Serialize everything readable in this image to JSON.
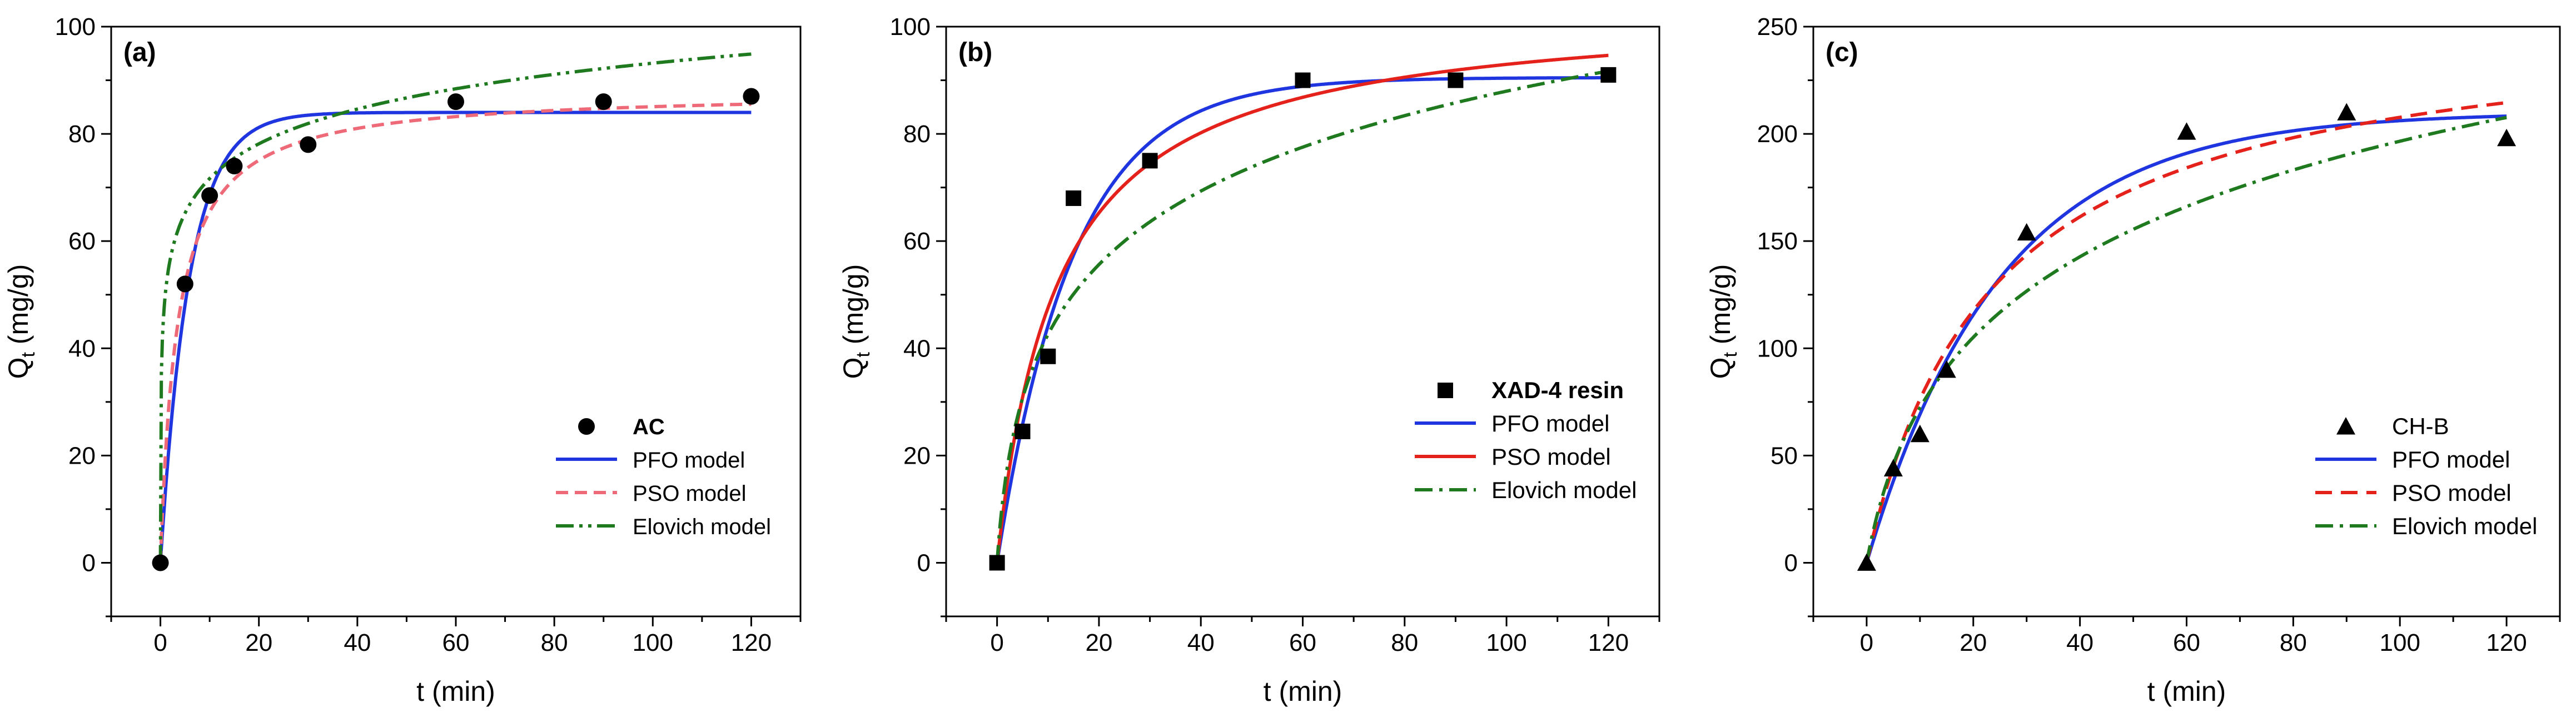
{
  "chart_data": [
    {
      "type": "line",
      "panel_label": "(a)",
      "xlabel": "t (min)",
      "ylabel_main": "Q",
      "ylabel_sub": "t",
      "ylabel_tail": " (mg/g)",
      "xlim": [
        -10,
        130
      ],
      "ylim": [
        -10,
        100
      ],
      "xticks": [
        0,
        20,
        40,
        60,
        80,
        100,
        120
      ],
      "yticks": [
        0,
        20,
        40,
        60,
        80,
        100
      ],
      "legend_position": "bottom-right",
      "legend_first_bold": true,
      "marker": "circle",
      "series": [
        {
          "name": "AC",
          "kind": "scatter",
          "x": [
            0,
            5,
            10,
            15,
            30,
            60,
            90,
            120
          ],
          "y": [
            0,
            52,
            68.5,
            74,
            78,
            86,
            86,
            87
          ]
        },
        {
          "name": "PFO model",
          "kind": "line",
          "model": "pfo",
          "params": {
            "qe": 84,
            "k1": 0.17
          }
        },
        {
          "name": "PSO model",
          "kind": "line",
          "model": "pso",
          "params": {
            "qe": 88,
            "k2": 0.0033
          }
        },
        {
          "name": "Elovich model",
          "kind": "line",
          "model": "elovich",
          "params": {
            "alpha": 2000,
            "beta": 0.107
          }
        }
      ]
    },
    {
      "type": "line",
      "panel_label": "(b)",
      "xlabel": "t (min)",
      "ylabel_main": "Q",
      "ylabel_sub": "t",
      "ylabel_tail": " (mg/g)",
      "xlim": [
        -10,
        130
      ],
      "ylim": [
        -10,
        100
      ],
      "xticks": [
        0,
        20,
        40,
        60,
        80,
        100,
        120
      ],
      "yticks": [
        0,
        20,
        40,
        60,
        80,
        100
      ],
      "legend_position": "bottom-right",
      "legend_first_bold": true,
      "marker": "square",
      "series": [
        {
          "name": "XAD-4 resin",
          "kind": "scatter",
          "x": [
            0,
            5,
            10,
            15,
            30,
            60,
            90,
            120
          ],
          "y": [
            0,
            24.5,
            38.5,
            68,
            75,
            90,
            90,
            91
          ]
        },
        {
          "name": "PFO model",
          "kind": "line",
          "model": "pfo",
          "params": {
            "qe": 90.5,
            "k1": 0.067
          }
        },
        {
          "name": "PSO model",
          "kind": "line",
          "model": "pso",
          "params": {
            "qe": 104,
            "k2": 0.00081
          }
        },
        {
          "name": "Elovich model",
          "kind": "line",
          "model": "elovich",
          "params": {
            "alpha": 14,
            "beta": 0.048
          }
        }
      ]
    },
    {
      "type": "line",
      "panel_label": "(c)",
      "xlabel": "t (min)",
      "ylabel_main": "Q",
      "ylabel_sub": "t",
      "ylabel_tail": " (mg/g)",
      "xlim": [
        -10,
        130
      ],
      "ylim": [
        -25,
        250
      ],
      "xticks": [
        0,
        20,
        40,
        60,
        80,
        100,
        120
      ],
      "yticks": [
        0,
        50,
        100,
        150,
        200,
        250
      ],
      "legend_position": "bottom-right",
      "legend_first_bold": false,
      "marker": "triangle",
      "series": [
        {
          "name": "CH-B",
          "kind": "scatter",
          "x": [
            0,
            5,
            10,
            15,
            30,
            60,
            90,
            120
          ],
          "y": [
            0,
            44,
            60,
            90,
            154,
            201,
            210,
            198
          ]
        },
        {
          "name": "PFO model",
          "kind": "line",
          "model": "pfo",
          "params": {
            "qe": 210,
            "k1": 0.04
          }
        },
        {
          "name": "PSO model",
          "kind": "line",
          "model": "pso",
          "params": {
            "qe": 257,
            "k2": 0.000164
          }
        },
        {
          "name": "Elovich model",
          "kind": "line",
          "model": "elovich",
          "params": {
            "alpha": 13.5,
            "beta": 0.0158
          }
        }
      ]
    }
  ],
  "colors": {
    "scatter": "#000000",
    "pfo": "#1f35e0",
    "pso_a": "#ef6a78",
    "pso": "#e4221b",
    "elovich": "#1f7a1f"
  },
  "line_styles": {
    "pfo": "solid",
    "pso_panel_a": "dashed-short",
    "pso_panel_b": "solid",
    "pso_panel_c": "dashed",
    "elovich_panel_a": "dash-dot-dot",
    "elovich": "dash-dot"
  }
}
